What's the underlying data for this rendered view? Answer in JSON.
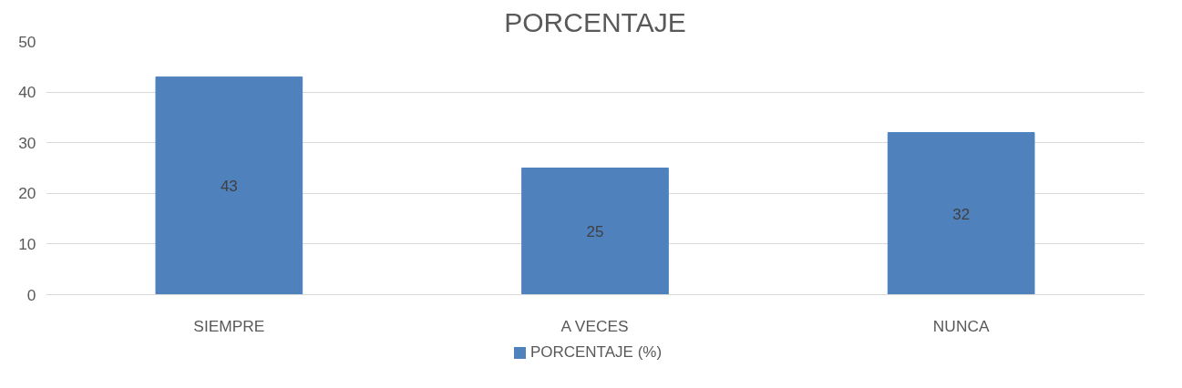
{
  "chart_data": {
    "type": "bar",
    "title": "PORCENTAJE",
    "categories": [
      "SIEMPRE",
      "A VECES",
      "NUNCA"
    ],
    "series": [
      {
        "name": "PORCENTAJE (%)",
        "color": "#4f81bd",
        "values": [
          43,
          25,
          32
        ]
      }
    ],
    "ylim": [
      0,
      50
    ],
    "yticks": [
      0,
      10,
      20,
      30,
      40,
      50
    ],
    "grid": "y",
    "legend": "bottom",
    "data_labels": true
  }
}
